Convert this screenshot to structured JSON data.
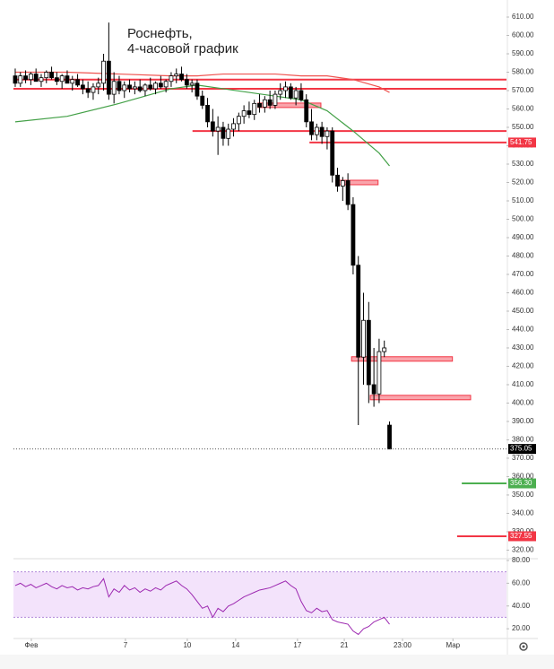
{
  "chart_data": [
    {
      "type": "candlestick",
      "title_lines": [
        "Роснефть,",
        "4-часовой график"
      ],
      "x": [
        0,
        1,
        2,
        3,
        4,
        5,
        6,
        7,
        8,
        9,
        10,
        11,
        12,
        13,
        14,
        15,
        16,
        17,
        18,
        19,
        20,
        21,
        22,
        23,
        24,
        25,
        26,
        27,
        28,
        29,
        30,
        31,
        32,
        33,
        34,
        35,
        36,
        37,
        38,
        39,
        40,
        41,
        42,
        43,
        44,
        45,
        46,
        47,
        48,
        49,
        50,
        51,
        52,
        53,
        54,
        55,
        56,
        57,
        58,
        59,
        60,
        61,
        62,
        63,
        64,
        65,
        66,
        67,
        68,
        69,
        70,
        71,
        72
      ],
      "open": [
        578,
        574,
        578,
        576,
        579,
        575,
        577,
        580,
        577,
        575,
        578,
        574,
        576,
        573,
        571,
        569,
        572,
        574,
        586,
        568,
        575,
        570,
        573,
        571,
        572,
        570,
        573,
        571,
        574,
        572,
        575,
        578,
        579,
        576,
        573,
        574,
        567,
        562,
        553,
        548,
        550,
        544,
        549,
        552,
        556,
        559,
        557,
        563,
        561,
        565,
        562,
        568,
        570,
        572,
        566,
        570,
        565,
        553,
        546,
        550,
        545,
        548,
        524,
        518,
        521,
        508,
        475,
        425,
        445,
        410,
        405,
        428,
        388
      ],
      "high": [
        582,
        580,
        581,
        580,
        582,
        579,
        581,
        583,
        580,
        579,
        581,
        578,
        579,
        576,
        575,
        574,
        577,
        590,
        607,
        580,
        578,
        575,
        576,
        575,
        576,
        574,
        577,
        575,
        578,
        576,
        580,
        582,
        583,
        579,
        576,
        576,
        570,
        566,
        560,
        556,
        553,
        552,
        555,
        558,
        562,
        564,
        565,
        568,
        567,
        570,
        570,
        574,
        575,
        574,
        572,
        574,
        568,
        560,
        552,
        553,
        550,
        550,
        528,
        523,
        525,
        512,
        480,
        460,
        455,
        430,
        435,
        434,
        390
      ],
      "low": [
        572,
        572,
        574,
        573,
        575,
        572,
        574,
        576,
        573,
        571,
        574,
        570,
        572,
        568,
        566,
        565,
        568,
        570,
        565,
        563,
        568,
        566,
        569,
        568,
        569,
        567,
        570,
        568,
        571,
        569,
        572,
        574,
        575,
        571,
        569,
        565,
        560,
        550,
        545,
        535,
        540,
        540,
        545,
        548,
        552,
        555,
        554,
        558,
        558,
        560,
        560,
        565,
        566,
        565,
        562,
        564,
        550,
        543,
        543,
        541,
        538,
        520,
        515,
        510,
        505,
        470,
        388,
        410,
        400,
        398,
        400,
        425,
        375
      ],
      "close": [
        574,
        578,
        576,
        579,
        575,
        577,
        580,
        577,
        575,
        578,
        574,
        576,
        573,
        571,
        569,
        572,
        574,
        586,
        568,
        575,
        570,
        573,
        571,
        572,
        570,
        573,
        571,
        574,
        572,
        575,
        578,
        579,
        576,
        573,
        574,
        567,
        562,
        553,
        548,
        550,
        544,
        549,
        552,
        556,
        559,
        557,
        563,
        561,
        565,
        562,
        568,
        570,
        572,
        566,
        570,
        565,
        553,
        546,
        550,
        545,
        548,
        524,
        518,
        521,
        508,
        475,
        425,
        445,
        410,
        405,
        428,
        430,
        375
      ],
      "up_color": "#ffffff",
      "down_color": "#000000",
      "moving_averages": [
        {
          "color": "#43a047",
          "x": [
            0,
            10,
            20,
            30,
            35,
            40,
            50,
            55,
            60,
            65,
            70,
            72
          ],
          "values": [
            553,
            556,
            563,
            571,
            573,
            571,
            567,
            565,
            559,
            548,
            536,
            529
          ]
        },
        {
          "color": "#ef5350",
          "x": [
            0,
            10,
            20,
            30,
            35,
            40,
            50,
            55,
            60,
            65,
            70,
            72
          ],
          "values": [
            580,
            580,
            579,
            578,
            578,
            579,
            579,
            578,
            578,
            576,
            572,
            569
          ]
        }
      ],
      "levels": [
        {
          "value": 576,
          "x": [
            -0.34,
            94.5
          ],
          "color": "#f23645",
          "style": "line"
        },
        {
          "value": 571,
          "x": [
            -0.34,
            94.5
          ],
          "color": "#f23645",
          "style": "line"
        },
        {
          "value": 548,
          "x": [
            34.1,
            94.5
          ],
          "color": "#f23645",
          "style": "line"
        },
        {
          "value": 541.75,
          "x": [
            56.6,
            94.5
          ],
          "color": "#f23645",
          "style": "line"
        },
        {
          "value": 562,
          "x": [
            46.7,
            58.8
          ],
          "color": "#f23645",
          "style": "zone"
        },
        {
          "value": 520,
          "x": [
            61.7,
            69.8
          ],
          "color": "#f23645",
          "style": "zone"
        },
        {
          "value": 424,
          "x": [
            64.7,
            84.1
          ],
          "color": "#f23645",
          "style": "zone"
        },
        {
          "value": 403,
          "x": [
            68.3,
            87.6
          ],
          "color": "#f23645",
          "style": "zone"
        },
        {
          "value": 356.3,
          "x": [
            85.9,
            94.5
          ],
          "color": "#4caf50",
          "style": "line"
        },
        {
          "value": 327.55,
          "x": [
            85.0,
            94.5
          ],
          "color": "#f23645",
          "style": "line"
        }
      ],
      "price_labels": [
        {
          "value": 541.75,
          "label": "541.75",
          "color": "#f23645"
        },
        {
          "value": 375.05,
          "label": "375.05",
          "color": "#000000"
        },
        {
          "value": 356.3,
          "label": "356.30",
          "color": "#4caf50"
        },
        {
          "value": 327.55,
          "label": "327.55",
          "color": "#f23645"
        }
      ],
      "xlim": [
        -0.34,
        94.5
      ],
      "xticks": [
        {
          "value": 3.1,
          "label": "Фев"
        },
        {
          "value": 21.2,
          "label": "7"
        },
        {
          "value": 33.1,
          "label": "10"
        },
        {
          "value": 42.4,
          "label": "14"
        },
        {
          "value": 54.3,
          "label": "17"
        },
        {
          "value": 63.3,
          "label": "21"
        },
        {
          "value": 74.5,
          "label": "23:00"
        },
        {
          "value": 84.2,
          "label": "Мар"
        }
      ],
      "ylim": [
        316.8,
        614.4
      ],
      "yticks": [
        {
          "value": 320,
          "label": "320.00"
        },
        {
          "value": 330,
          "label": "330.00"
        },
        {
          "value": 340,
          "label": "340.00"
        },
        {
          "value": 350,
          "label": "350.00"
        },
        {
          "value": 360,
          "label": "360.00"
        },
        {
          "value": 370,
          "label": "370.00"
        },
        {
          "value": 380,
          "label": "380.00"
        },
        {
          "value": 390,
          "label": "390.00"
        },
        {
          "value": 400,
          "label": "400.00"
        },
        {
          "value": 410,
          "label": "410.00"
        },
        {
          "value": 420,
          "label": "420.00"
        },
        {
          "value": 430,
          "label": "430.00"
        },
        {
          "value": 440,
          "label": "440.00"
        },
        {
          "value": 450,
          "label": "450.00"
        },
        {
          "value": 460,
          "label": "460.00"
        },
        {
          "value": 470,
          "label": "470.00"
        },
        {
          "value": 480,
          "label": "480.00"
        },
        {
          "value": 490,
          "label": "490.00"
        },
        {
          "value": 500,
          "label": "500.00"
        },
        {
          "value": 510,
          "label": "510.00"
        },
        {
          "value": 520,
          "label": "520.00"
        },
        {
          "value": 530,
          "label": "530.00"
        },
        {
          "value": 540,
          "label": "540.00"
        },
        {
          "value": 550,
          "label": "550.00"
        },
        {
          "value": 560,
          "label": "560.00"
        },
        {
          "value": 570,
          "label": "570.00"
        },
        {
          "value": 580,
          "label": "580.00"
        },
        {
          "value": 590,
          "label": "590.00"
        },
        {
          "value": 600,
          "label": "600.00"
        },
        {
          "value": 610,
          "label": "610.00"
        }
      ]
    },
    {
      "type": "line",
      "x": [
        0,
        1,
        2,
        3,
        4,
        5,
        6,
        7,
        8,
        9,
        10,
        11,
        12,
        13,
        14,
        15,
        16,
        17,
        18,
        19,
        20,
        21,
        22,
        23,
        24,
        25,
        26,
        27,
        28,
        29,
        30,
        31,
        32,
        33,
        34,
        35,
        36,
        37,
        38,
        39,
        40,
        41,
        42,
        43,
        44,
        45,
        46,
        47,
        48,
        49,
        50,
        51,
        52,
        53,
        54,
        55,
        56,
        57,
        58,
        59,
        60,
        61,
        62,
        63,
        64,
        65,
        66,
        67,
        68,
        69,
        70,
        71,
        72
      ],
      "values": [
        58,
        60,
        57,
        59,
        56,
        58,
        60,
        57,
        55,
        58,
        56,
        57,
        54,
        56,
        55,
        57,
        58,
        64,
        48,
        55,
        52,
        58,
        54,
        56,
        52,
        55,
        53,
        56,
        54,
        58,
        60,
        62,
        58,
        55,
        50,
        44,
        38,
        40,
        30,
        38,
        35,
        40,
        42,
        45,
        48,
        50,
        52,
        54,
        55,
        56,
        58,
        60,
        62,
        58,
        55,
        44,
        36,
        34,
        38,
        35,
        36,
        28,
        26,
        25,
        24,
        18,
        15,
        20,
        22,
        26,
        28,
        30,
        24
      ],
      "color": "#9c27b0",
      "band": [
        30,
        70
      ],
      "band_color": "#f3e3fb",
      "xlim": [
        -0.34,
        94.5
      ],
      "ylim": [
        13,
        85.5
      ],
      "yticks": [
        {
          "value": 20,
          "label": "20.00"
        },
        {
          "value": 40,
          "label": "40.00"
        },
        {
          "value": 60,
          "label": "60.00"
        },
        {
          "value": 80,
          "label": "80.00"
        }
      ]
    }
  ]
}
